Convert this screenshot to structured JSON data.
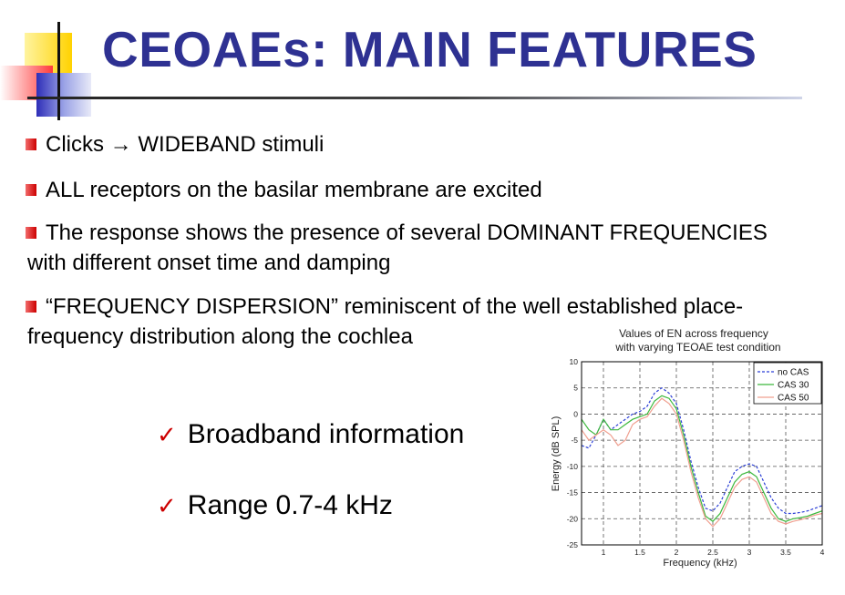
{
  "slide": {
    "title": "CEOAEs: MAIN FEATURES",
    "bullets": [
      "Clicks → WIDEBAND stimuli",
      "ALL receptors on the basilar membrane are excited",
      "The response shows the presence of several DOMINANT FREQUENCIES",
      "“FREQUENCY DISPERSION” reminiscent of the well established place-"
    ],
    "continuations": [
      "with different onset time and damping",
      "frequency distribution along the cochlea"
    ],
    "checks": [
      "Broadband information",
      "Range 0.7-4 kHz"
    ],
    "colors": {
      "title": "#2e3192",
      "bullet": "#cc0000",
      "check": "#cc0000"
    }
  },
  "chart_data": {
    "type": "line",
    "title": [
      "Values of EN across frequency",
      "with varying TEOAE test condition"
    ],
    "xlabel": "Frequency (kHz)",
    "ylabel": "Energy (dB SPL)",
    "xlim": [
      0.7,
      4
    ],
    "ylim": [
      -25,
      10
    ],
    "xticks": [
      1,
      1.5,
      2,
      2.5,
      3,
      3.5,
      4
    ],
    "xtick_labels": [
      "1",
      "1.5",
      "2",
      "2.5",
      "3",
      "3.5",
      "4"
    ],
    "yticks": [
      10,
      5,
      0,
      -5,
      -10,
      -15,
      -20,
      -25
    ],
    "ytick_labels": [
      "10",
      "5",
      "0",
      "-5",
      "-10",
      "-15",
      "-20",
      "-25"
    ],
    "grid": true,
    "legend_position": "top-right",
    "series": [
      {
        "name": "no CAS",
        "color": "#2b3fd6",
        "dash": "3,2",
        "x": [
          0.7,
          0.8,
          0.9,
          1.0,
          1.1,
          1.2,
          1.3,
          1.4,
          1.5,
          1.6,
          1.7,
          1.8,
          1.9,
          2.0,
          2.1,
          2.2,
          2.3,
          2.4,
          2.5,
          2.6,
          2.7,
          2.8,
          2.9,
          3.0,
          3.1,
          3.2,
          3.3,
          3.4,
          3.5,
          3.6,
          3.7,
          3.8,
          3.9,
          4.0
        ],
        "y": [
          -6,
          -6.5,
          -4,
          -1,
          -3,
          -2,
          -1,
          0,
          0.5,
          1.5,
          4,
          5,
          4,
          2,
          -3,
          -9,
          -14,
          -18,
          -18.5,
          -17,
          -14,
          -11,
          -10,
          -9.5,
          -10,
          -13,
          -16,
          -18,
          -19,
          -19,
          -18.8,
          -18.5,
          -18,
          -17.5
        ]
      },
      {
        "name": "CAS 30",
        "color": "#3cb83c",
        "dash": "",
        "x": [
          0.7,
          0.8,
          0.9,
          1.0,
          1.1,
          1.2,
          1.3,
          1.4,
          1.5,
          1.6,
          1.7,
          1.8,
          1.9,
          2.0,
          2.1,
          2.2,
          2.3,
          2.4,
          2.5,
          2.6,
          2.7,
          2.8,
          2.9,
          3.0,
          3.1,
          3.2,
          3.3,
          3.4,
          3.5,
          3.6,
          3.7,
          3.8,
          3.9,
          4.0
        ],
        "y": [
          -1,
          -3,
          -4,
          -1,
          -3,
          -3,
          -2,
          -1,
          -0.5,
          0,
          2.5,
          3.5,
          3,
          1,
          -4,
          -10,
          -15,
          -19.5,
          -20.5,
          -19,
          -16,
          -13,
          -11.5,
          -11,
          -12,
          -15,
          -18,
          -20,
          -20.5,
          -20,
          -19.8,
          -19.5,
          -19,
          -18.5
        ]
      },
      {
        "name": "CAS 50",
        "color": "#f0a090",
        "dash": "",
        "x": [
          0.7,
          0.8,
          0.9,
          1.0,
          1.1,
          1.2,
          1.3,
          1.4,
          1.5,
          1.6,
          1.7,
          1.8,
          1.9,
          2.0,
          2.1,
          2.2,
          2.3,
          2.4,
          2.5,
          2.6,
          2.7,
          2.8,
          2.9,
          3.0,
          3.1,
          3.2,
          3.3,
          3.4,
          3.5,
          3.6,
          3.7,
          3.8,
          3.9,
          4.0
        ],
        "y": [
          -3,
          -5,
          -4,
          -3,
          -4,
          -6,
          -5,
          -2,
          -1,
          -0.5,
          1.5,
          3,
          2,
          0,
          -5,
          -11,
          -16,
          -20,
          -21.5,
          -20,
          -17,
          -14,
          -12.5,
          -12,
          -13,
          -16,
          -19,
          -20.5,
          -21,
          -20.5,
          -20.2,
          -19.8,
          -19.3,
          -19
        ]
      }
    ]
  }
}
